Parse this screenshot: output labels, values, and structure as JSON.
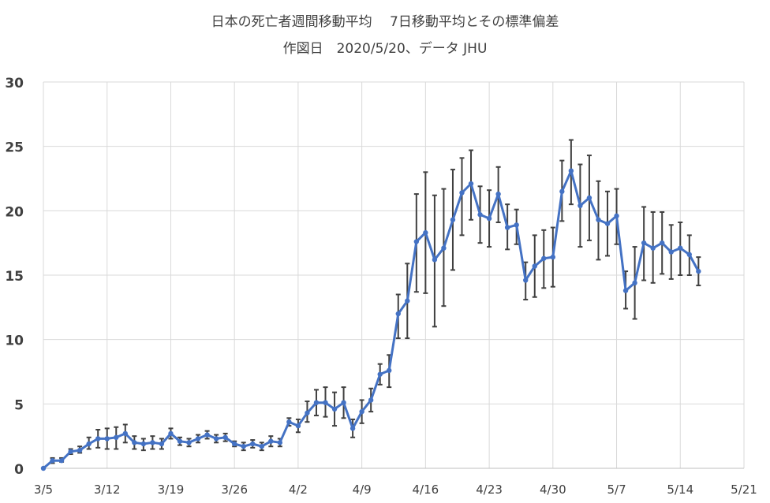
{
  "chart_data": {
    "type": "line",
    "title": "日本の死亡者週間移動平均　 7日移動平均とその標準偏差",
    "subtitle": "作図日　2020/5/20、データ JHU",
    "xlabel": "",
    "ylabel": "",
    "ylim": [
      0,
      30
    ],
    "y_ticks": [
      0,
      5,
      10,
      15,
      20,
      25,
      30
    ],
    "x_tick_labels": [
      "3/5",
      "3/12",
      "3/19",
      "3/26",
      "4/2",
      "4/9",
      "4/16",
      "4/23",
      "4/30",
      "5/7",
      "5/14",
      "5/21"
    ],
    "x_range_days": [
      0,
      77
    ],
    "grid": true,
    "legend": "none",
    "colors": {
      "line": "#4472C4",
      "error_bar": "#404040",
      "grid": "#D9D9D9"
    },
    "series": [
      {
        "values": [
          0.0,
          0.6,
          0.6,
          1.3,
          1.4,
          1.9,
          2.3,
          2.3,
          2.4,
          2.7,
          2.0,
          1.9,
          2.0,
          1.9,
          2.7,
          2.1,
          2.0,
          2.3,
          2.6,
          2.3,
          2.4,
          1.9,
          1.7,
          1.9,
          1.7,
          2.1,
          2.0,
          3.6,
          3.3,
          4.3,
          5.1,
          5.1,
          4.6,
          5.1,
          3.1,
          4.4,
          5.3,
          7.3,
          7.6,
          12.0,
          13.0,
          17.6,
          18.3,
          16.2,
          17.1,
          19.3,
          21.4,
          22.1,
          19.7,
          19.4,
          21.3,
          18.7,
          18.9,
          14.6,
          15.7,
          16.3,
          16.4,
          21.5,
          23.1,
          20.4,
          21.0,
          19.3,
          19.0,
          19.6,
          13.8,
          14.4,
          17.5,
          17.1,
          17.5,
          16.8,
          17.1,
          16.6,
          15.3
        ],
        "error_low": [
          0.0,
          0.4,
          0.5,
          1.1,
          1.2,
          1.5,
          1.6,
          1.5,
          1.5,
          2.0,
          1.5,
          1.4,
          1.5,
          1.5,
          2.3,
          1.8,
          1.7,
          2.0,
          2.3,
          2.0,
          2.1,
          1.7,
          1.4,
          1.6,
          1.4,
          1.7,
          1.7,
          3.3,
          2.8,
          3.6,
          4.1,
          4.0,
          3.3,
          3.9,
          2.4,
          3.5,
          4.4,
          6.5,
          6.3,
          10.1,
          10.1,
          13.7,
          13.6,
          11.0,
          12.6,
          15.4,
          18.1,
          19.3,
          17.5,
          17.2,
          19.1,
          17.0,
          17.4,
          13.1,
          13.3,
          14.0,
          14.1,
          19.2,
          20.5,
          17.2,
          17.7,
          16.2,
          16.5,
          17.4,
          12.4,
          11.6,
          14.6,
          14.4,
          15.1,
          14.7,
          15.0,
          15.0,
          14.2
        ],
        "error_high": [
          0.0,
          0.8,
          0.8,
          1.5,
          1.7,
          2.4,
          3.0,
          3.1,
          3.2,
          3.4,
          2.5,
          2.3,
          2.5,
          2.3,
          3.1,
          2.4,
          2.3,
          2.6,
          2.9,
          2.6,
          2.7,
          2.1,
          2.0,
          2.2,
          2.0,
          2.5,
          2.3,
          3.9,
          3.8,
          5.2,
          6.1,
          6.3,
          5.9,
          6.3,
          3.8,
          5.3,
          6.2,
          8.1,
          8.8,
          13.5,
          15.9,
          21.3,
          23.0,
          21.2,
          21.7,
          23.2,
          24.1,
          24.7,
          21.9,
          21.6,
          23.4,
          20.5,
          20.1,
          16.0,
          18.1,
          18.5,
          18.7,
          23.9,
          25.5,
          23.6,
          24.3,
          22.3,
          21.5,
          21.7,
          15.3,
          17.2,
          20.3,
          19.9,
          19.9,
          18.9,
          19.1,
          18.1,
          16.4
        ]
      }
    ]
  }
}
